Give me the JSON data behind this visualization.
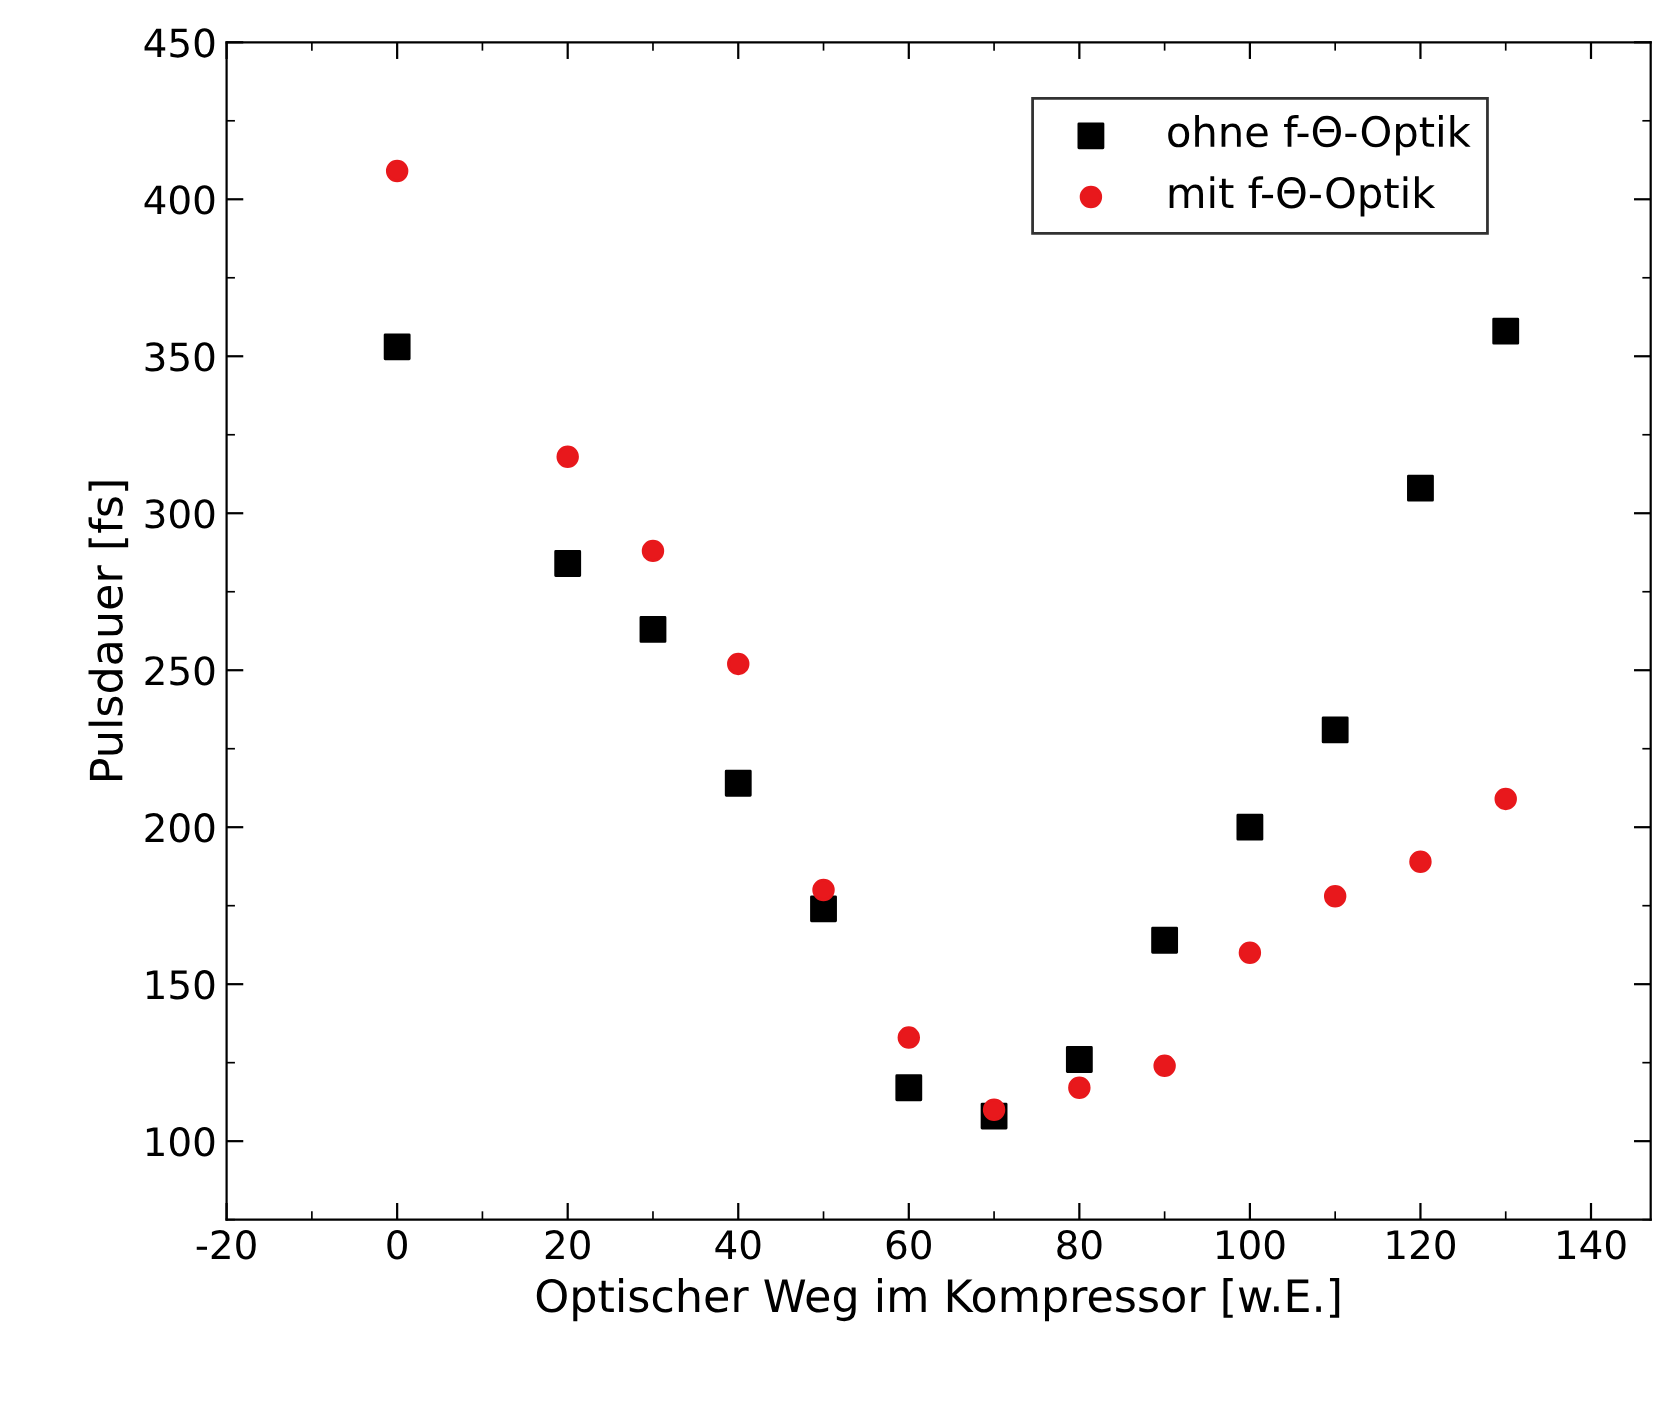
{
  "chart_data": {
    "type": "scatter",
    "xlabel": "Optischer Weg im Kompressor [w.E.]",
    "ylabel": "Pulsdauer [fs]",
    "x": [
      0,
      20,
      30,
      40,
      50,
      60,
      70,
      80,
      90,
      100,
      110,
      120,
      130
    ],
    "series": [
      {
        "name": "ohne f-Θ-Optik",
        "color": "#000000",
        "marker": "square",
        "values": [
          353,
          284,
          263,
          214,
          174,
          117,
          108,
          126,
          164,
          200,
          231,
          308,
          358
        ]
      },
      {
        "name": "mit f-Θ-Optik",
        "color": "#e8181c",
        "marker": "circle",
        "values": [
          409,
          318,
          288,
          252,
          180,
          133,
          110,
          117,
          124,
          160,
          178,
          189,
          209
        ]
      }
    ],
    "xlim": [
      -20,
      147
    ],
    "ylim": [
      75,
      450
    ],
    "xticks": [
      -20,
      0,
      20,
      40,
      60,
      80,
      100,
      120,
      140
    ],
    "yticks": [
      100,
      150,
      200,
      250,
      300,
      350,
      400,
      450
    ],
    "grid": false,
    "legend": "top right"
  }
}
